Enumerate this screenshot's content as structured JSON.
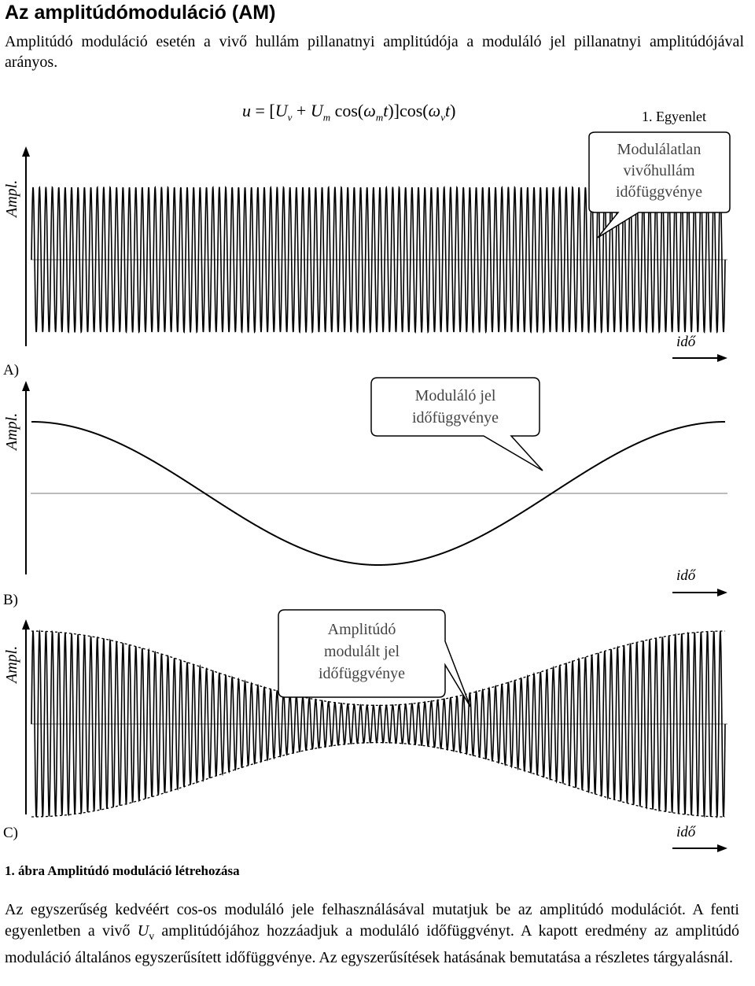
{
  "title": "Az amplitúdómoduláció (AM)",
  "intro": "Amplitúdó moduláció esetén a vivő hullám pillanatnyi amplitúdója a moduláló jel pillanatnyi amplitúdójával arányos.",
  "equation": {
    "u": "u",
    "eq": " = [",
    "U1": "U",
    "v1": "v",
    "plus": " + ",
    "U2": "U",
    "m1": "m",
    "cos1": " cos(",
    "w1": "ω",
    "m2": "m",
    "t1": "t",
    "mid": ")]cos(",
    "w2": "ω",
    "v2": "v",
    "t2": "t",
    "close": ")",
    "number": "1. Egyenlet"
  },
  "axis_label": "Ampl.",
  "time_label": "idő",
  "panels": [
    {
      "letter": "A)",
      "callout": [
        "Modulálatlan",
        "vivőhullám",
        "időfüggvénye"
      ]
    },
    {
      "letter": "B)",
      "callout": [
        "Moduláló jel",
        "időfüggvénye"
      ]
    },
    {
      "letter": "C)",
      "callout": [
        "Amplitúdó",
        "modulált jel",
        "időfüggvénye"
      ]
    }
  ],
  "caption": "1. ábra Amplitúdó moduláció létrehozása",
  "body": {
    "part1": "Az egyszerűség kedvéért cos-os moduláló jele felhasználásával mutatjuk be az amplitúdó modulációt. A fenti egyenletben a vivő ",
    "symbol": "U",
    "sub": "v",
    "part2": " amplitúdójához hozzáadjuk a moduláló időfüggvényt. A kapott eredmény az amplitúdó moduláció általános egyszerűsített időfüggvénye. Az egyszerűsítések hatásának bemutatása a részletes tárgyalásnál."
  }
}
